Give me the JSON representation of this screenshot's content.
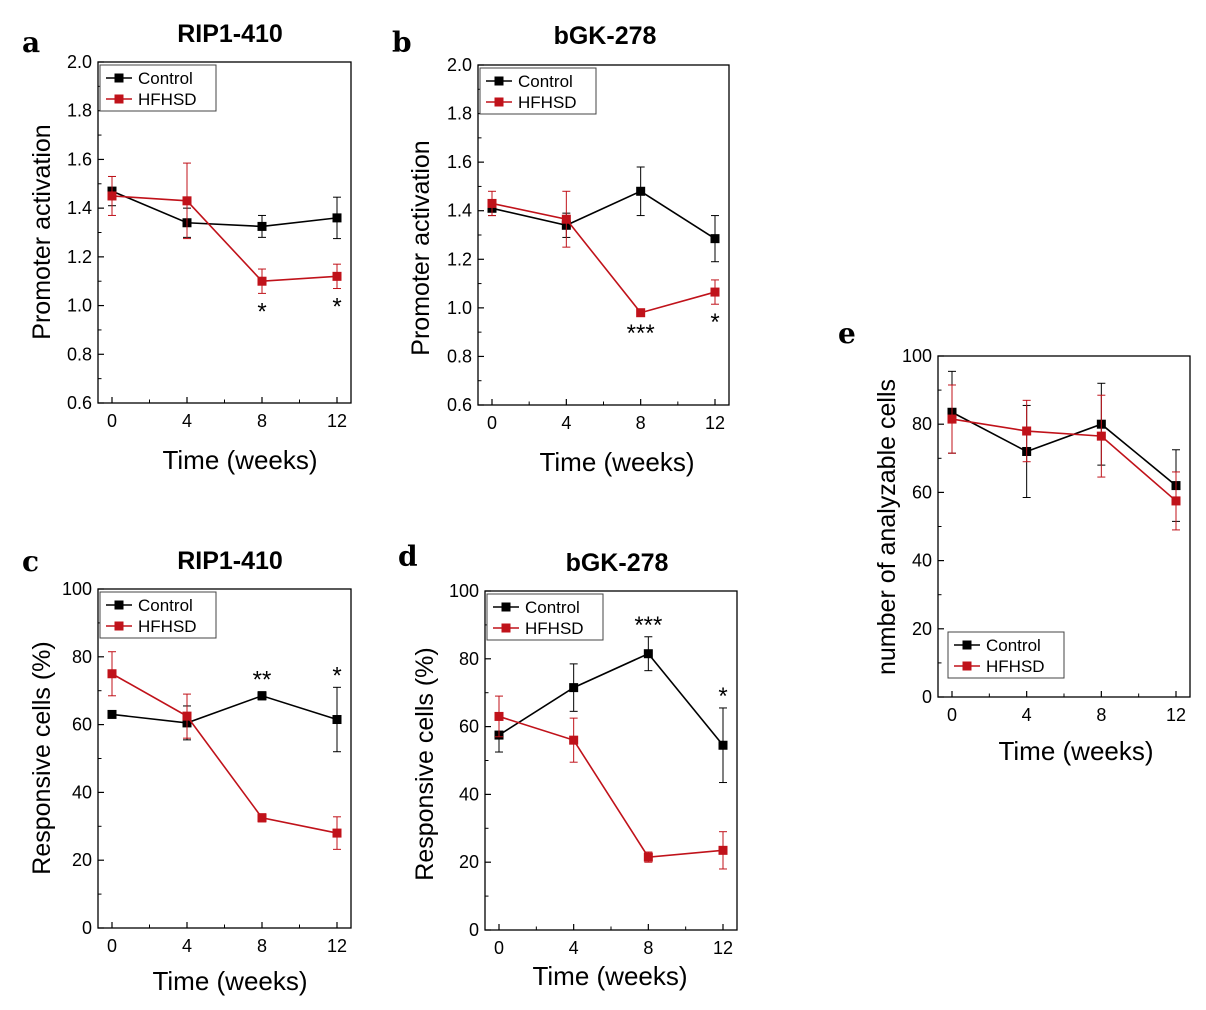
{
  "figure": {
    "colors": {
      "control": "#000000",
      "hfhsd": "#c0121a",
      "axis": "#000000"
    }
  },
  "chart_data": [
    {
      "id": "a",
      "letter": "a",
      "type": "line",
      "title": "RIP1-410",
      "xlabel": "Time (weeks)",
      "ylabel": "Promoter activation",
      "x": [
        0,
        4,
        8,
        12
      ],
      "xticks": [
        "0",
        "4",
        "8",
        "12"
      ],
      "ylim": [
        0.6,
        2.0
      ],
      "yticks": [
        0.6,
        0.8,
        1.0,
        1.2,
        1.4,
        1.6,
        1.8,
        2.0
      ],
      "ytick_labels": [
        "0.6",
        "0.8",
        "1.0",
        "1.2",
        "1.4",
        "1.6",
        "1.8",
        "2.0"
      ],
      "legend": {
        "position": "top-left",
        "entries": [
          "Control",
          "HFHSD"
        ]
      },
      "series": [
        {
          "name": "Control",
          "values": [
            1.47,
            1.34,
            1.325,
            1.36
          ],
          "errors": [
            0.06,
            0.06,
            0.045,
            0.085
          ]
        },
        {
          "name": "HFHSD",
          "values": [
            1.45,
            1.43,
            1.1,
            1.12
          ],
          "errors": [
            0.08,
            0.155,
            0.05,
            0.05
          ]
        }
      ],
      "annotations": [
        {
          "x": 8,
          "text": "*"
        },
        {
          "x": 12,
          "text": "*"
        }
      ]
    },
    {
      "id": "b",
      "letter": "b",
      "type": "line",
      "title": "bGK-278",
      "xlabel": "Time (weeks)",
      "ylabel": "Promoter activation",
      "x": [
        0,
        4,
        8,
        12
      ],
      "xticks": [
        "0",
        "4",
        "8",
        "12"
      ],
      "ylim": [
        0.6,
        2.0
      ],
      "yticks": [
        0.6,
        0.8,
        1.0,
        1.2,
        1.4,
        1.6,
        1.8,
        2.0
      ],
      "ytick_labels": [
        "0.6",
        "0.8",
        "1.0",
        "1.2",
        "1.4",
        "1.6",
        "1.8",
        "2.0"
      ],
      "legend": {
        "position": "top-left",
        "entries": [
          "Control",
          "HFHSD"
        ]
      },
      "series": [
        {
          "name": "Control",
          "values": [
            1.41,
            1.34,
            1.48,
            1.285
          ],
          "errors": [
            0.03,
            0.05,
            0.1,
            0.095
          ]
        },
        {
          "name": "HFHSD",
          "values": [
            1.43,
            1.365,
            0.98,
            1.065
          ],
          "errors": [
            0.05,
            0.115,
            0.01,
            0.05
          ]
        }
      ],
      "annotations": [
        {
          "x": 8,
          "text": "***"
        },
        {
          "x": 12,
          "text": "*"
        }
      ]
    },
    {
      "id": "c",
      "letter": "c",
      "type": "line",
      "title": "RIP1-410",
      "xlabel": "Time (weeks)",
      "ylabel": "Responsive cells (%)",
      "x": [
        0,
        4,
        8,
        12
      ],
      "xticks": [
        "0",
        "4",
        "8",
        "12"
      ],
      "ylim": [
        0,
        100
      ],
      "yticks": [
        0,
        20,
        40,
        60,
        80,
        100
      ],
      "ytick_labels": [
        "0",
        "20",
        "40",
        "60",
        "80",
        "100"
      ],
      "legend": {
        "position": "top-left",
        "entries": [
          "Control",
          "HFHSD"
        ]
      },
      "series": [
        {
          "name": "Control",
          "values": [
            63,
            60.5,
            68.5,
            61.5
          ],
          "errors": [
            0.8,
            5,
            1.2,
            9.5
          ]
        },
        {
          "name": "HFHSD",
          "values": [
            75,
            62.5,
            32.5,
            28
          ],
          "errors": [
            6.5,
            6.5,
            1.2,
            4.8
          ]
        }
      ],
      "annotations": [
        {
          "x": 8,
          "text": "**"
        },
        {
          "x": 12,
          "text": "*"
        }
      ]
    },
    {
      "id": "d",
      "letter": "d",
      "type": "line",
      "title": "bGK-278",
      "xlabel": "Time (weeks)",
      "ylabel": "Responsive cells (%)",
      "x": [
        0,
        4,
        8,
        12
      ],
      "xticks": [
        "0",
        "4",
        "8",
        "12"
      ],
      "ylim": [
        0,
        100
      ],
      "yticks": [
        0,
        20,
        40,
        60,
        80,
        100
      ],
      "ytick_labels": [
        "0",
        "20",
        "40",
        "60",
        "80",
        "100"
      ],
      "legend": {
        "position": "top-left",
        "entries": [
          "Control",
          "HFHSD"
        ]
      },
      "series": [
        {
          "name": "Control",
          "values": [
            57.5,
            71.5,
            81.5,
            54.5
          ],
          "errors": [
            5,
            7,
            5,
            11
          ]
        },
        {
          "name": "HFHSD",
          "values": [
            63,
            56,
            21.5,
            23.5
          ],
          "errors": [
            6,
            6.5,
            1.5,
            5.5
          ]
        }
      ],
      "annotations": [
        {
          "x": 8,
          "text": "***"
        },
        {
          "x": 12,
          "text": "*"
        }
      ]
    },
    {
      "id": "e",
      "letter": "e",
      "type": "line",
      "title": "",
      "xlabel": "Time (weeks)",
      "ylabel": "number of analyzable cells",
      "x": [
        0,
        4,
        8,
        12
      ],
      "xticks": [
        "0",
        "4",
        "8",
        "12"
      ],
      "ylim": [
        0,
        100
      ],
      "yticks": [
        0,
        20,
        40,
        60,
        80,
        100
      ],
      "ytick_labels": [
        "0",
        "20",
        "40",
        "60",
        "80",
        "100"
      ],
      "legend": {
        "position": "bottom-left",
        "entries": [
          "Control",
          "HFHSD"
        ]
      },
      "series": [
        {
          "name": "Control",
          "values": [
            83.5,
            72,
            80,
            62
          ],
          "errors": [
            12,
            13.5,
            12,
            10.5
          ]
        },
        {
          "name": "HFHSD",
          "values": [
            81.5,
            78,
            76.5,
            57.5
          ],
          "errors": [
            10,
            9,
            12,
            8.5
          ]
        }
      ],
      "annotations": []
    }
  ]
}
